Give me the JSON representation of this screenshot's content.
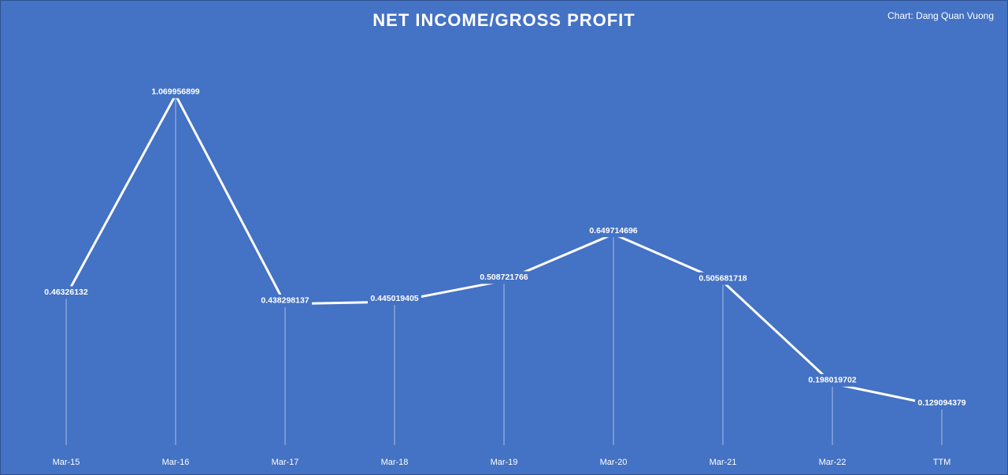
{
  "chart_data": {
    "type": "line",
    "title": "NET INCOME/GROSS PROFIT",
    "source": "Chart: Dang Quan Vuong",
    "categories": [
      "Mar-15",
      "Mar-16",
      "Mar-17",
      "Mar-18",
      "Mar-19",
      "Mar-20",
      "Mar-21",
      "Mar-22",
      "TTM"
    ],
    "values": [
      0.46326132,
      1.069956899,
      0.438298137,
      0.445019405,
      0.508721766,
      0.649714696,
      0.505681718,
      0.198019702,
      0.129094379
    ],
    "color": "#ffffff",
    "drop_lines": true
  }
}
